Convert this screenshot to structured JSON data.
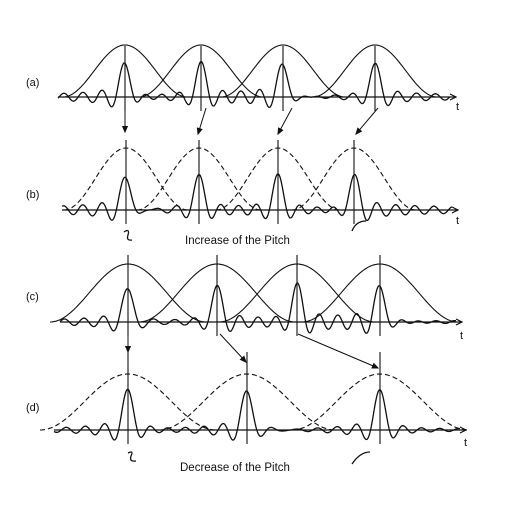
{
  "panels": [
    {
      "id": "a",
      "label": "(a)",
      "axis_label": "t"
    },
    {
      "id": "b",
      "label": "(b)",
      "axis_label": "t"
    },
    {
      "id": "c",
      "label": "(c)",
      "axis_label": "t"
    },
    {
      "id": "d",
      "label": "(d)",
      "axis_label": "t"
    }
  ],
  "captions": {
    "increase": "Increase of the Pitch",
    "decrease": "Decrease of the Pitch"
  }
}
